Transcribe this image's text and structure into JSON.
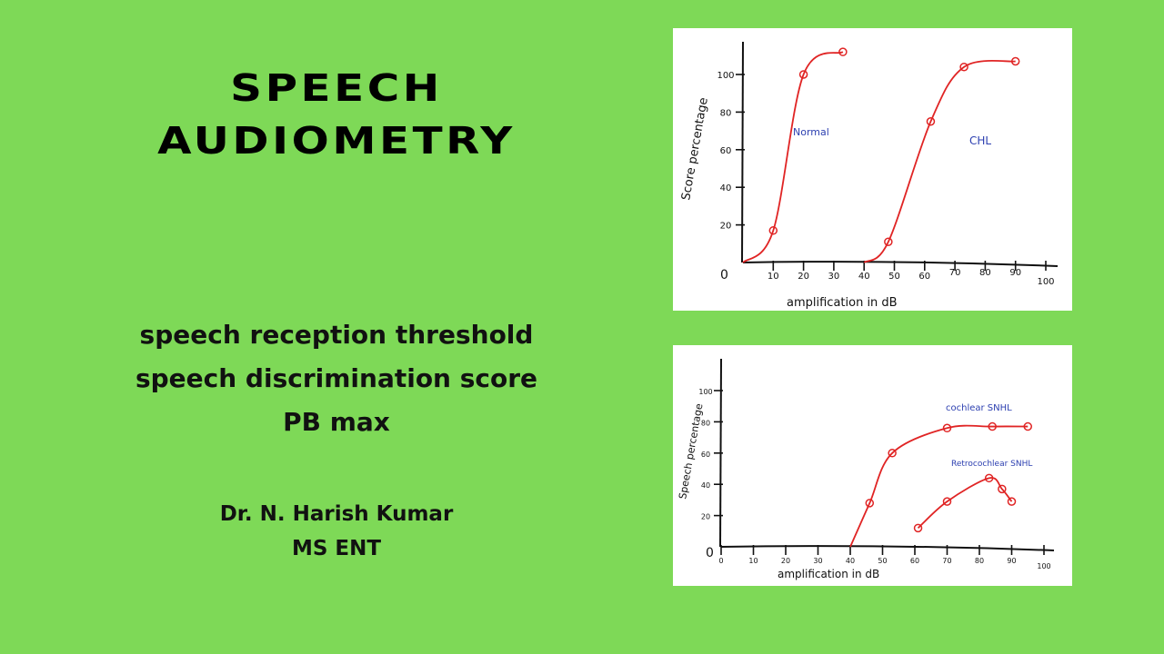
{
  "slide": {
    "background_color": "#7ed957",
    "title_line1": "SPEECH",
    "title_line2": "AUDIOMETRY",
    "topics": [
      "speech reception threshold",
      "speech discrimination score",
      "PB max"
    ],
    "author_name": "Dr. N. Harish Kumar",
    "author_degree": "MS ENT"
  },
  "chart_data": [
    {
      "type": "line",
      "title": "",
      "xlabel": "amplification in dB",
      "ylabel": "Score percentage",
      "x_ticks": [
        "0",
        "10",
        "20",
        "30",
        "40",
        "50",
        "60",
        "70",
        "80",
        "90",
        "100"
      ],
      "y_ticks": [
        "0",
        "20",
        "40",
        "60",
        "80",
        "100"
      ],
      "xlim": [
        0,
        100
      ],
      "ylim": [
        0,
        110
      ],
      "grid": false,
      "line_color": "#e02424",
      "label_color": "#2c3fb0",
      "series": [
        {
          "name": "Normal",
          "x": [
            0,
            10,
            20,
            33
          ],
          "y": [
            0,
            17,
            100,
            112
          ]
        },
        {
          "name": "CHL",
          "x": [
            40,
            48,
            62,
            73,
            90
          ],
          "y": [
            0,
            11,
            75,
            104,
            107
          ]
        }
      ]
    },
    {
      "type": "line",
      "title": "",
      "xlabel": "amplification in dB",
      "ylabel": "Speech percentage",
      "x_ticks": [
        "0",
        "10",
        "20",
        "30",
        "40",
        "50",
        "60",
        "70",
        "80",
        "90",
        "100"
      ],
      "y_ticks": [
        "0",
        "20",
        "40",
        "60",
        "80",
        "100"
      ],
      "xlim": [
        0,
        100
      ],
      "ylim": [
        0,
        100
      ],
      "grid": false,
      "line_color": "#e02424",
      "label_color": "#2c3fb0",
      "series": [
        {
          "name": "cochlear SNHL",
          "x": [
            40,
            46,
            53,
            70,
            84,
            95
          ],
          "y": [
            0,
            28,
            60,
            76,
            77,
            77
          ]
        },
        {
          "name": "Retrocochlear SNHL",
          "x": [
            61,
            70,
            83,
            87,
            90
          ],
          "y": [
            12,
            29,
            44,
            37,
            29
          ]
        }
      ]
    }
  ]
}
